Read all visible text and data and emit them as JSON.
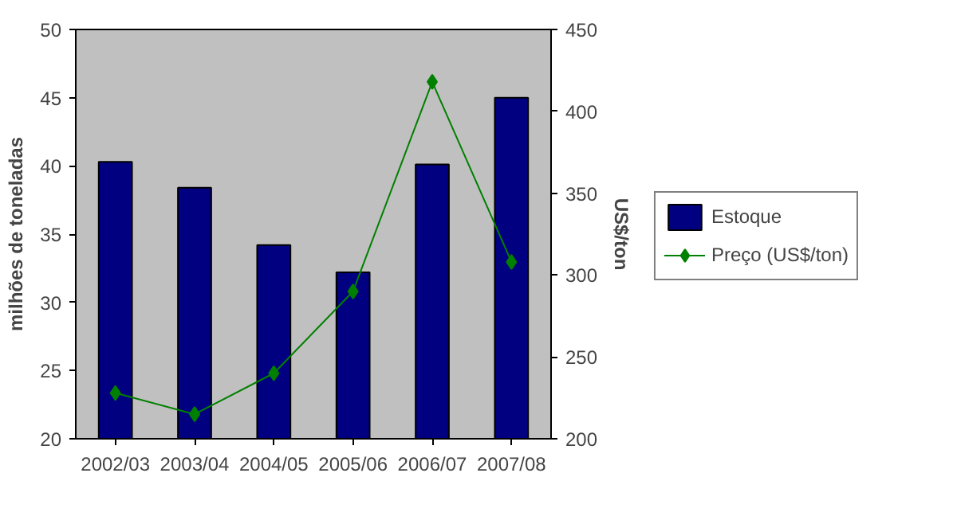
{
  "chart_data": {
    "type": "bar",
    "categories": [
      "2002/03",
      "2003/04",
      "2004/05",
      "2005/06",
      "2006/07",
      "2007/08"
    ],
    "ylabel": "milhões de toneladas",
    "y2label": "US$/ton",
    "ylim": [
      20,
      50
    ],
    "yticks": [
      20,
      25,
      30,
      35,
      40,
      45,
      50
    ],
    "y2lim": [
      200,
      450
    ],
    "y2ticks": [
      200,
      250,
      300,
      350,
      400,
      450
    ],
    "series": [
      {
        "name": "Estoque",
        "type": "bar",
        "color": "#000080",
        "values": [
          40.3,
          38.4,
          34.2,
          32.2,
          40.1,
          45.0
        ]
      },
      {
        "name": "Preço (US$/ton)",
        "type": "line",
        "axis": "y2",
        "color": "#008000",
        "marker": "diamond",
        "line_style": "solid",
        "values": [
          228,
          215,
          240,
          290,
          418,
          308
        ]
      }
    ],
    "grid": false,
    "legend": "right"
  }
}
